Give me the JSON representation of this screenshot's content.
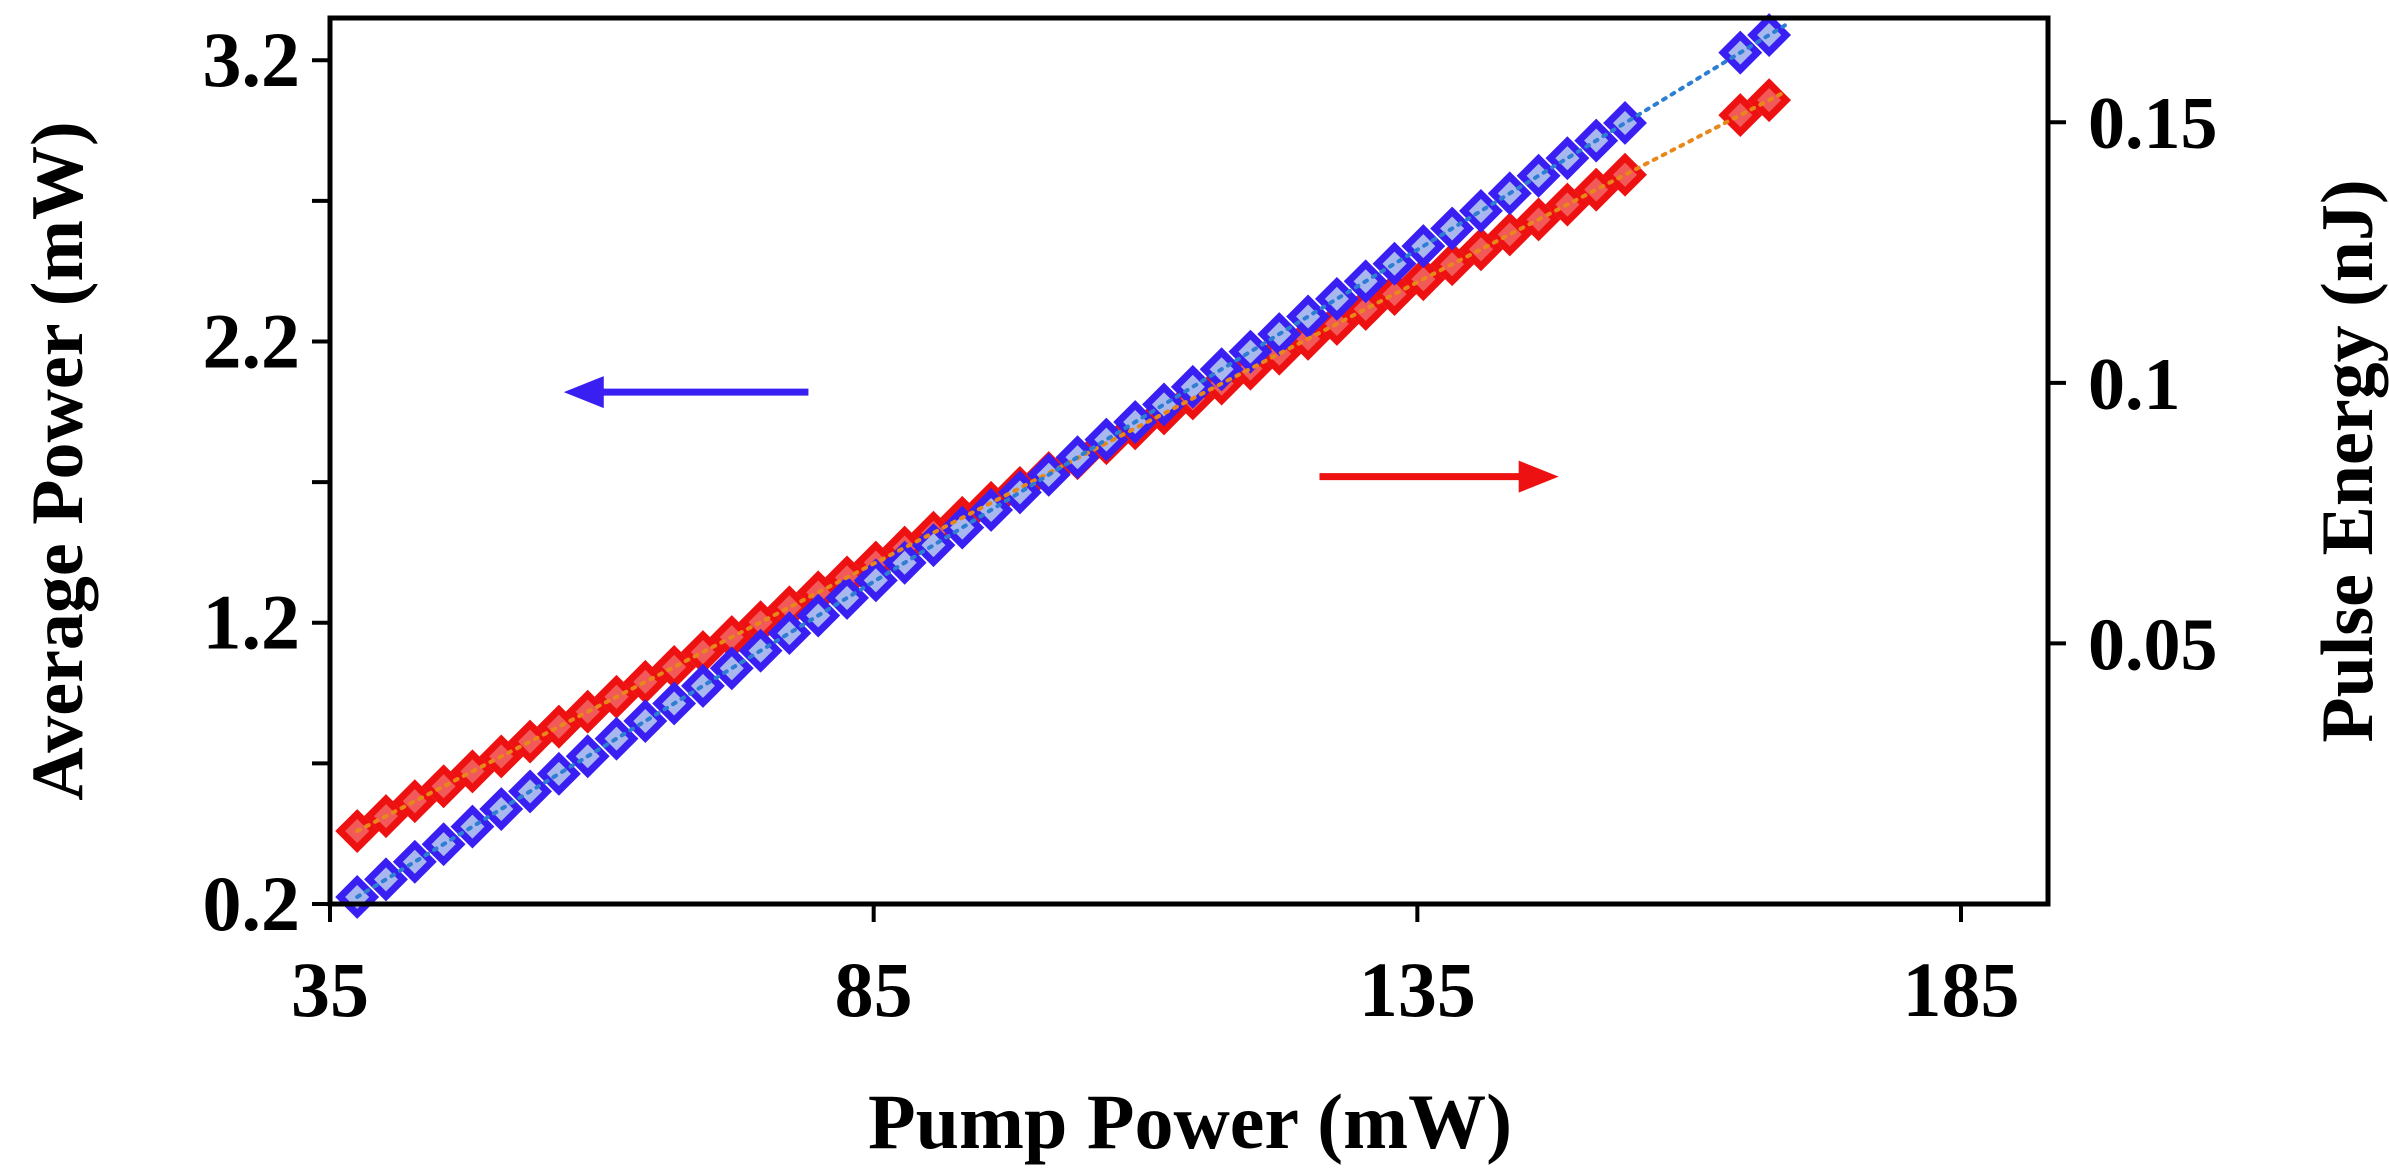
{
  "chart_data": {
    "type": "scatter",
    "title": "",
    "xlabel": "Pump Power (mW)",
    "ylabel_left": "Average Power (mW)",
    "ylabel_right": "Pulse Energy (nJ)",
    "xlim": [
      35,
      193
    ],
    "ylim_left": [
      0.2,
      3.35
    ],
    "ylim_right": [
      0.0,
      0.17
    ],
    "xticks": [
      35,
      85,
      135,
      185
    ],
    "xtick_labels": [
      "35",
      "85",
      "135",
      "185"
    ],
    "yticks_left_labeled": [
      0.2,
      1.2,
      2.2,
      3.2
    ],
    "yticks_left_labels": [
      "0.2",
      "1.2",
      "2.2",
      "3.2"
    ],
    "yticks_left_minor": [
      0.7,
      1.7,
      2.7
    ],
    "yticks_right": [
      0.05,
      0.1,
      0.15
    ],
    "yticks_right_labels": [
      "0.05",
      "0.1",
      "0.15"
    ],
    "legend": "none",
    "grid": false,
    "series": [
      {
        "name": "Average Power",
        "axis": "left",
        "marker": "diamond",
        "color": "#3a1ff2",
        "fill": "#a9b7ef",
        "trend_color": "#2e7fd1",
        "x_start": 37.5,
        "x_step": 2.65,
        "x_end": 168.8,
        "gap_after": 155.3,
        "y_intercept": -0.66,
        "y_slope": 0.0236,
        "trend_x": [
          37.5,
          168.8
        ]
      },
      {
        "name": "Pulse Energy",
        "axis": "right",
        "marker": "diamond",
        "color": "#ee1111",
        "fill": "#f25a5a",
        "trend_color": "#e8871a",
        "x_start": 37.5,
        "x_step": 2.65,
        "x_end": 168.8,
        "gap_after": 155.3,
        "y_intercept": -0.0265,
        "y_slope": 0.00108,
        "trend_x": [
          37.5,
          168.8
        ]
      }
    ],
    "annotations": [
      {
        "type": "arrow",
        "direction": "left",
        "color": "#3a1ff2",
        "from": [
          79,
          2.02
        ],
        "to": [
          56.5,
          2.02
        ],
        "meaning": "series uses left axis"
      },
      {
        "type": "arrow",
        "direction": "right",
        "color": "#ee1111",
        "from": [
          126,
          0.082
        ],
        "to": [
          148,
          0.082
        ],
        "meaning": "series uses right axis"
      }
    ]
  }
}
